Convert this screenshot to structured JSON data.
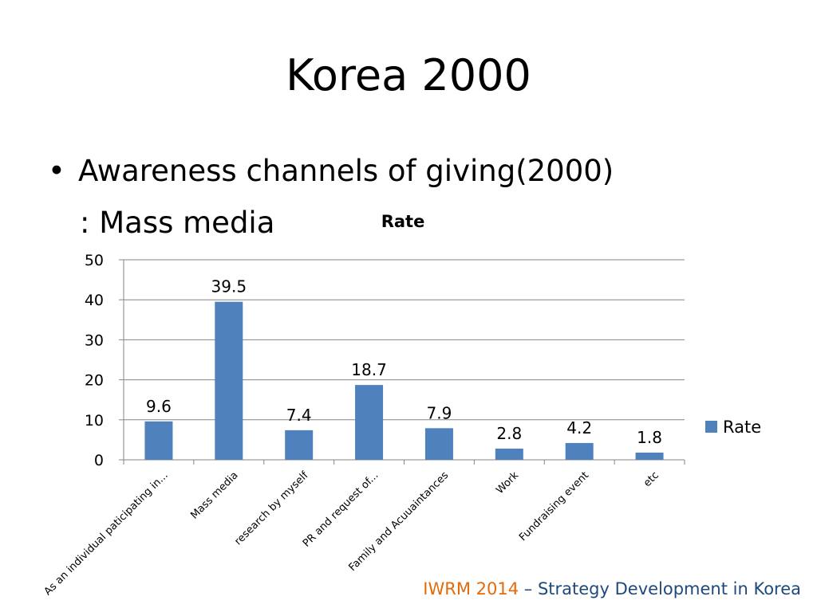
{
  "slide": {
    "title": "Korea 2000",
    "bullet": "Awareness channels of giving(2000)",
    "bullet_sub": ": Mass media",
    "bullet_glyph": "•"
  },
  "footer": {
    "org": "IWRM 2014",
    "rest": " – Strategy Development in Korea",
    "org_color": "#E26B0A",
    "rest_color": "#1F497D"
  },
  "chart_data": {
    "type": "bar",
    "title": "Rate",
    "categories": [
      "As an individual paticipating in...",
      "Mass media",
      "research by myself",
      "PR and request of...",
      "Family and Acuuaintances",
      "Work",
      "Fundraising event",
      "etc"
    ],
    "series": [
      {
        "name": "Rate",
        "values": [
          9.6,
          39.5,
          7.4,
          18.7,
          7.9,
          2.8,
          4.2,
          1.8
        ],
        "color": "#4F81BD"
      }
    ],
    "ylim": [
      0,
      50
    ],
    "yticks": [
      0,
      10,
      20,
      30,
      40,
      50
    ],
    "grid": true,
    "legend": "right",
    "data_labels": true
  }
}
